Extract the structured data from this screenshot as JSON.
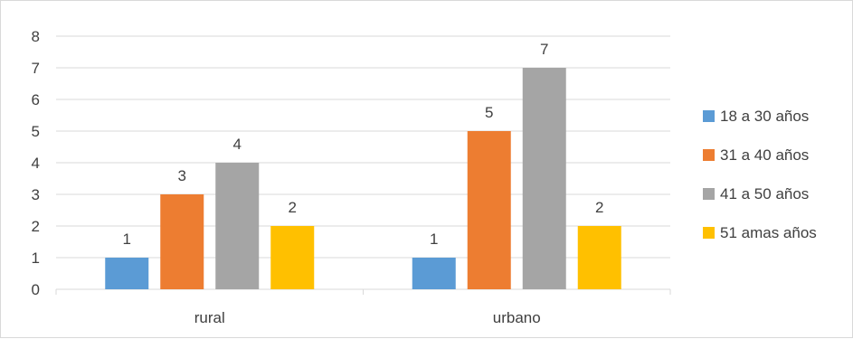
{
  "chart_data": {
    "type": "bar",
    "title": "",
    "xlabel": "",
    "ylabel": "",
    "categories": [
      "rural",
      "urbano"
    ],
    "series": [
      {
        "name": "18 a 30 años",
        "values": [
          1,
          1
        ],
        "color": "#5b9bd5"
      },
      {
        "name": "31 a 40 años",
        "values": [
          3,
          5
        ],
        "color": "#ed7d31"
      },
      {
        "name": "41 a 50 años",
        "values": [
          4,
          7
        ],
        "color": "#a5a5a5"
      },
      {
        "name": "51 amas años",
        "values": [
          2,
          2
        ],
        "color": "#ffc000"
      }
    ],
    "ylim": [
      0,
      8
    ],
    "yticks": [
      "0",
      "1",
      "2",
      "3",
      "4",
      "5",
      "6",
      "7",
      "8"
    ],
    "grid": true,
    "data_labels": true,
    "legend_position": "right",
    "gridline_color": "#d9d9d9",
    "text_color": "#404040"
  }
}
